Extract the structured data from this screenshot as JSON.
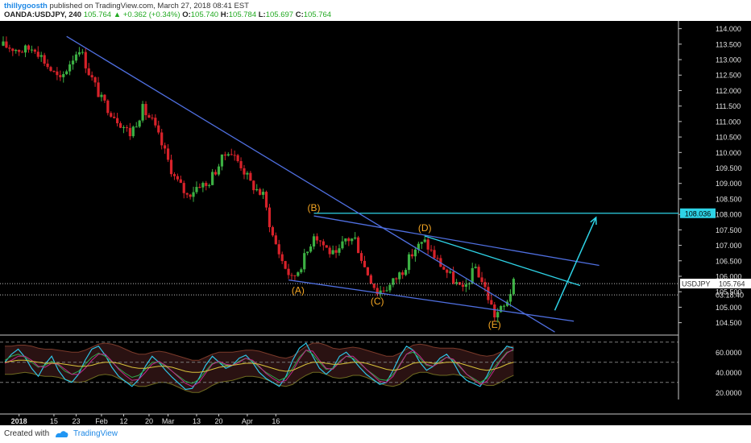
{
  "header": {
    "author": "thillygoosth",
    "published": "published on TradingView.com, March 27, 2018 08:41 EST",
    "symbol": "OANDA:USDJPY, 240",
    "last": "105.764",
    "change": "+0.362 (+0.34%)",
    "open_label": "O:",
    "open": "105.740",
    "high_label": "H:",
    "high": "105.784",
    "low_label": "L:",
    "low": "105.697",
    "close_label": "C:",
    "close": "105.764"
  },
  "footer": {
    "created_with": "Created with",
    "brand": "TradingView",
    "logo_icon": "tradingview-logo-icon"
  },
  "colors": {
    "background": "#000000",
    "up": "#3cb043",
    "down": "#d8222a",
    "trendline": "#4f6fe0",
    "cyan": "#2ed3e6",
    "wave_label": "#f5a623",
    "axis_text": "#e0e0e0"
  },
  "chart_data": [
    {
      "type": "candlestick",
      "symbol": "USDJPY",
      "timeframe": "240",
      "x_tick_labels": [
        "2018",
        "15",
        "23",
        "Feb",
        "12",
        "20",
        "Mar",
        "13",
        "20",
        "Apr",
        "16"
      ],
      "y_tick_labels": [
        "104.500",
        "105.000",
        "105.500",
        "106.000",
        "106.500",
        "107.000",
        "107.500",
        "108.000",
        "108.500",
        "109.000",
        "109.500",
        "110.000",
        "110.500",
        "111.000",
        "111.500",
        "112.000",
        "112.500",
        "113.000",
        "113.500",
        "114.000"
      ],
      "ylim": [
        104.1,
        114.25
      ],
      "grid": false,
      "price_path": [
        [
          0,
          113.45
        ],
        [
          6,
          113.3
        ],
        [
          10,
          113.4
        ],
        [
          14,
          112.8
        ],
        [
          18,
          112.3
        ],
        [
          21,
          112.9
        ],
        [
          24,
          113.4
        ],
        [
          27,
          112.6
        ],
        [
          31,
          111.7
        ],
        [
          35,
          111.2
        ],
        [
          40,
          110.6
        ],
        [
          44,
          111.4
        ],
        [
          47,
          111.0
        ],
        [
          51,
          110.0
        ],
        [
          54,
          109.2
        ],
        [
          58,
          108.6
        ],
        [
          62,
          109.0
        ],
        [
          64,
          108.9
        ],
        [
          68,
          109.6
        ],
        [
          71,
          110.1
        ],
        [
          75,
          109.6
        ],
        [
          78,
          109.0
        ],
        [
          82,
          108.6
        ],
        [
          85,
          107.3
        ],
        [
          88,
          106.5
        ],
        [
          91,
          105.9
        ],
        [
          93,
          106.2
        ],
        [
          96,
          106.8
        ],
        [
          98,
          107.4
        ],
        [
          102,
          106.9
        ],
        [
          105,
          106.6
        ],
        [
          108,
          107.2
        ],
        [
          111,
          107.2
        ],
        [
          114,
          106.3
        ],
        [
          118,
          105.5
        ],
        [
          122,
          105.7
        ],
        [
          126,
          106.2
        ],
        [
          130,
          106.9
        ],
        [
          133,
          107.1
        ],
        [
          137,
          106.5
        ],
        [
          141,
          106.0
        ],
        [
          145,
          105.5
        ],
        [
          149,
          106.3
        ],
        [
          152,
          105.6
        ],
        [
          155,
          104.75
        ],
        [
          158,
          105.0
        ],
        [
          161,
          105.76
        ]
      ],
      "current_price_label": "USDJPY",
      "current_price": "105.764",
      "countdown": "03:18:40",
      "target_level": "108.036",
      "wave_labels": [
        {
          "label": "(A)",
          "x": 93,
          "y": 105.8
        },
        {
          "label": "(B)",
          "x": 98,
          "y": 107.95
        },
        {
          "label": "(C)",
          "x": 118,
          "y": 105.45
        },
        {
          "label": "(D)",
          "x": 133,
          "y": 107.3
        },
        {
          "label": "(E)",
          "x": 155,
          "y": 104.7
        }
      ],
      "trendlines": [
        {
          "name": "upper-wedge-line",
          "from": [
            20,
            113.75
          ],
          "to": [
            174,
            104.2
          ]
        },
        {
          "name": "lower-wedge-line",
          "from": [
            90,
            105.88
          ],
          "to": [
            180,
            104.55
          ]
        },
        {
          "name": "b-d-resistance-line",
          "from": [
            98,
            107.95
          ],
          "to": [
            188,
            106.35
          ]
        },
        {
          "name": "d-resistance-line",
          "from": [
            133,
            107.3
          ],
          "to": [
            182,
            105.7
          ]
        }
      ],
      "projection_arrow": {
        "from": [
          174,
          104.9
        ],
        "to": [
          187,
          107.9
        ]
      },
      "x_range": [
        0,
        212
      ]
    },
    {
      "type": "oscillator",
      "y_tick_labels": [
        "20.0000",
        "40.0000",
        "60.0000"
      ],
      "ylim": [
        13,
        77
      ],
      "levels": [
        30,
        50,
        70
      ],
      "series": [
        {
          "values": [
            50,
            58,
            63,
            55,
            44,
            36,
            48,
            56,
            42,
            33,
            30,
            38,
            52,
            63,
            66,
            57,
            45,
            36,
            31,
            26,
            33,
            46,
            56,
            50,
            42,
            35,
            29,
            23,
            24,
            34,
            47,
            56,
            50,
            44,
            47,
            54,
            57,
            50,
            40,
            34,
            30,
            26,
            36,
            52,
            64,
            69,
            56,
            44,
            38,
            44,
            56,
            60,
            53,
            45,
            38,
            33,
            28,
            30,
            42,
            56,
            66,
            62,
            50,
            42,
            46,
            54,
            58,
            50,
            38,
            32,
            29,
            26,
            36,
            50,
            58,
            66,
            64
          ]
        },
        {
          "values": [
            52,
            56,
            58,
            55,
            50,
            45,
            47,
            51,
            47,
            41,
            38,
            41,
            48,
            55,
            59,
            56,
            50,
            44,
            39,
            35,
            37,
            43,
            50,
            50,
            46,
            41,
            36,
            31,
            29,
            33,
            41,
            49,
            50,
            47,
            47,
            51,
            54,
            51,
            45,
            40,
            36,
            32,
            35,
            44,
            55,
            62,
            58,
            50,
            43,
            44,
            51,
            56,
            54,
            49,
            43,
            38,
            33,
            32,
            38,
            48,
            58,
            60,
            54,
            47,
            46,
            51,
            55,
            52,
            45,
            38,
            34,
            30,
            34,
            44,
            52,
            60,
            62
          ]
        },
        {
          "values": [
            49,
            52,
            56,
            56,
            52,
            46,
            45,
            49,
            48,
            43,
            38,
            38,
            44,
            52,
            58,
            58,
            51,
            43,
            37,
            32,
            33,
            40,
            48,
            51,
            47,
            41,
            35,
            29,
            26,
            30,
            39,
            48,
            51,
            48,
            47,
            50,
            54,
            52,
            46,
            39,
            34,
            30,
            32,
            41,
            53,
            62,
            61,
            52,
            44,
            43,
            50,
            56,
            56,
            50,
            43,
            37,
            31,
            30,
            36,
            47,
            58,
            62,
            56,
            48,
            46,
            50,
            55,
            53,
            46,
            38,
            33,
            28,
            31,
            41,
            51,
            59,
            63
          ]
        },
        {
          "values": [
            50,
            51,
            52,
            52,
            51,
            50,
            49,
            49,
            49,
            48,
            47,
            46,
            46,
            47,
            49,
            50,
            50,
            49,
            47,
            45,
            44,
            44,
            45,
            46,
            46,
            45,
            43,
            41,
            40,
            40,
            41,
            43,
            45,
            46,
            47,
            48,
            49,
            49,
            48,
            46,
            44,
            42,
            41,
            42,
            45,
            48,
            50,
            50,
            49,
            48,
            48,
            49,
            50,
            50,
            49,
            47,
            45,
            43,
            42,
            43,
            46,
            49,
            50,
            50,
            49,
            49,
            50,
            50,
            49,
            47,
            45,
            43,
            42,
            43,
            45,
            48,
            50
          ]
        }
      ],
      "band_upper": [
        66,
        66,
        67,
        67,
        66,
        64,
        63,
        63,
        62,
        61,
        60,
        60,
        62,
        65,
        68,
        69,
        68,
        66,
        63,
        60,
        58,
        58,
        60,
        61,
        60,
        58,
        56,
        54,
        52,
        52,
        55,
        58,
        60,
        60,
        60,
        61,
        62,
        62,
        61,
        59,
        57,
        55,
        54,
        56,
        61,
        66,
        69,
        69,
        67,
        64,
        63,
        64,
        65,
        64,
        62,
        60,
        58,
        56,
        56,
        59,
        63,
        67,
        68,
        67,
        65,
        64,
        64,
        64,
        63,
        61,
        59,
        57,
        56,
        57,
        60,
        64,
        66
      ],
      "band_lower": [
        38,
        38,
        39,
        40,
        39,
        37,
        36,
        36,
        35,
        33,
        31,
        30,
        31,
        34,
        37,
        38,
        37,
        34,
        31,
        28,
        26,
        26,
        28,
        30,
        30,
        28,
        25,
        22,
        20,
        20,
        23,
        27,
        30,
        31,
        32,
        34,
        36,
        36,
        35,
        33,
        30,
        27,
        26,
        28,
        33,
        37,
        40,
        40,
        38,
        35,
        34,
        35,
        37,
        37,
        35,
        32,
        29,
        27,
        26,
        28,
        33,
        38,
        40,
        40,
        38,
        37,
        37,
        38,
        37,
        35,
        32,
        29,
        27,
        27,
        30,
        34,
        37
      ]
    }
  ]
}
